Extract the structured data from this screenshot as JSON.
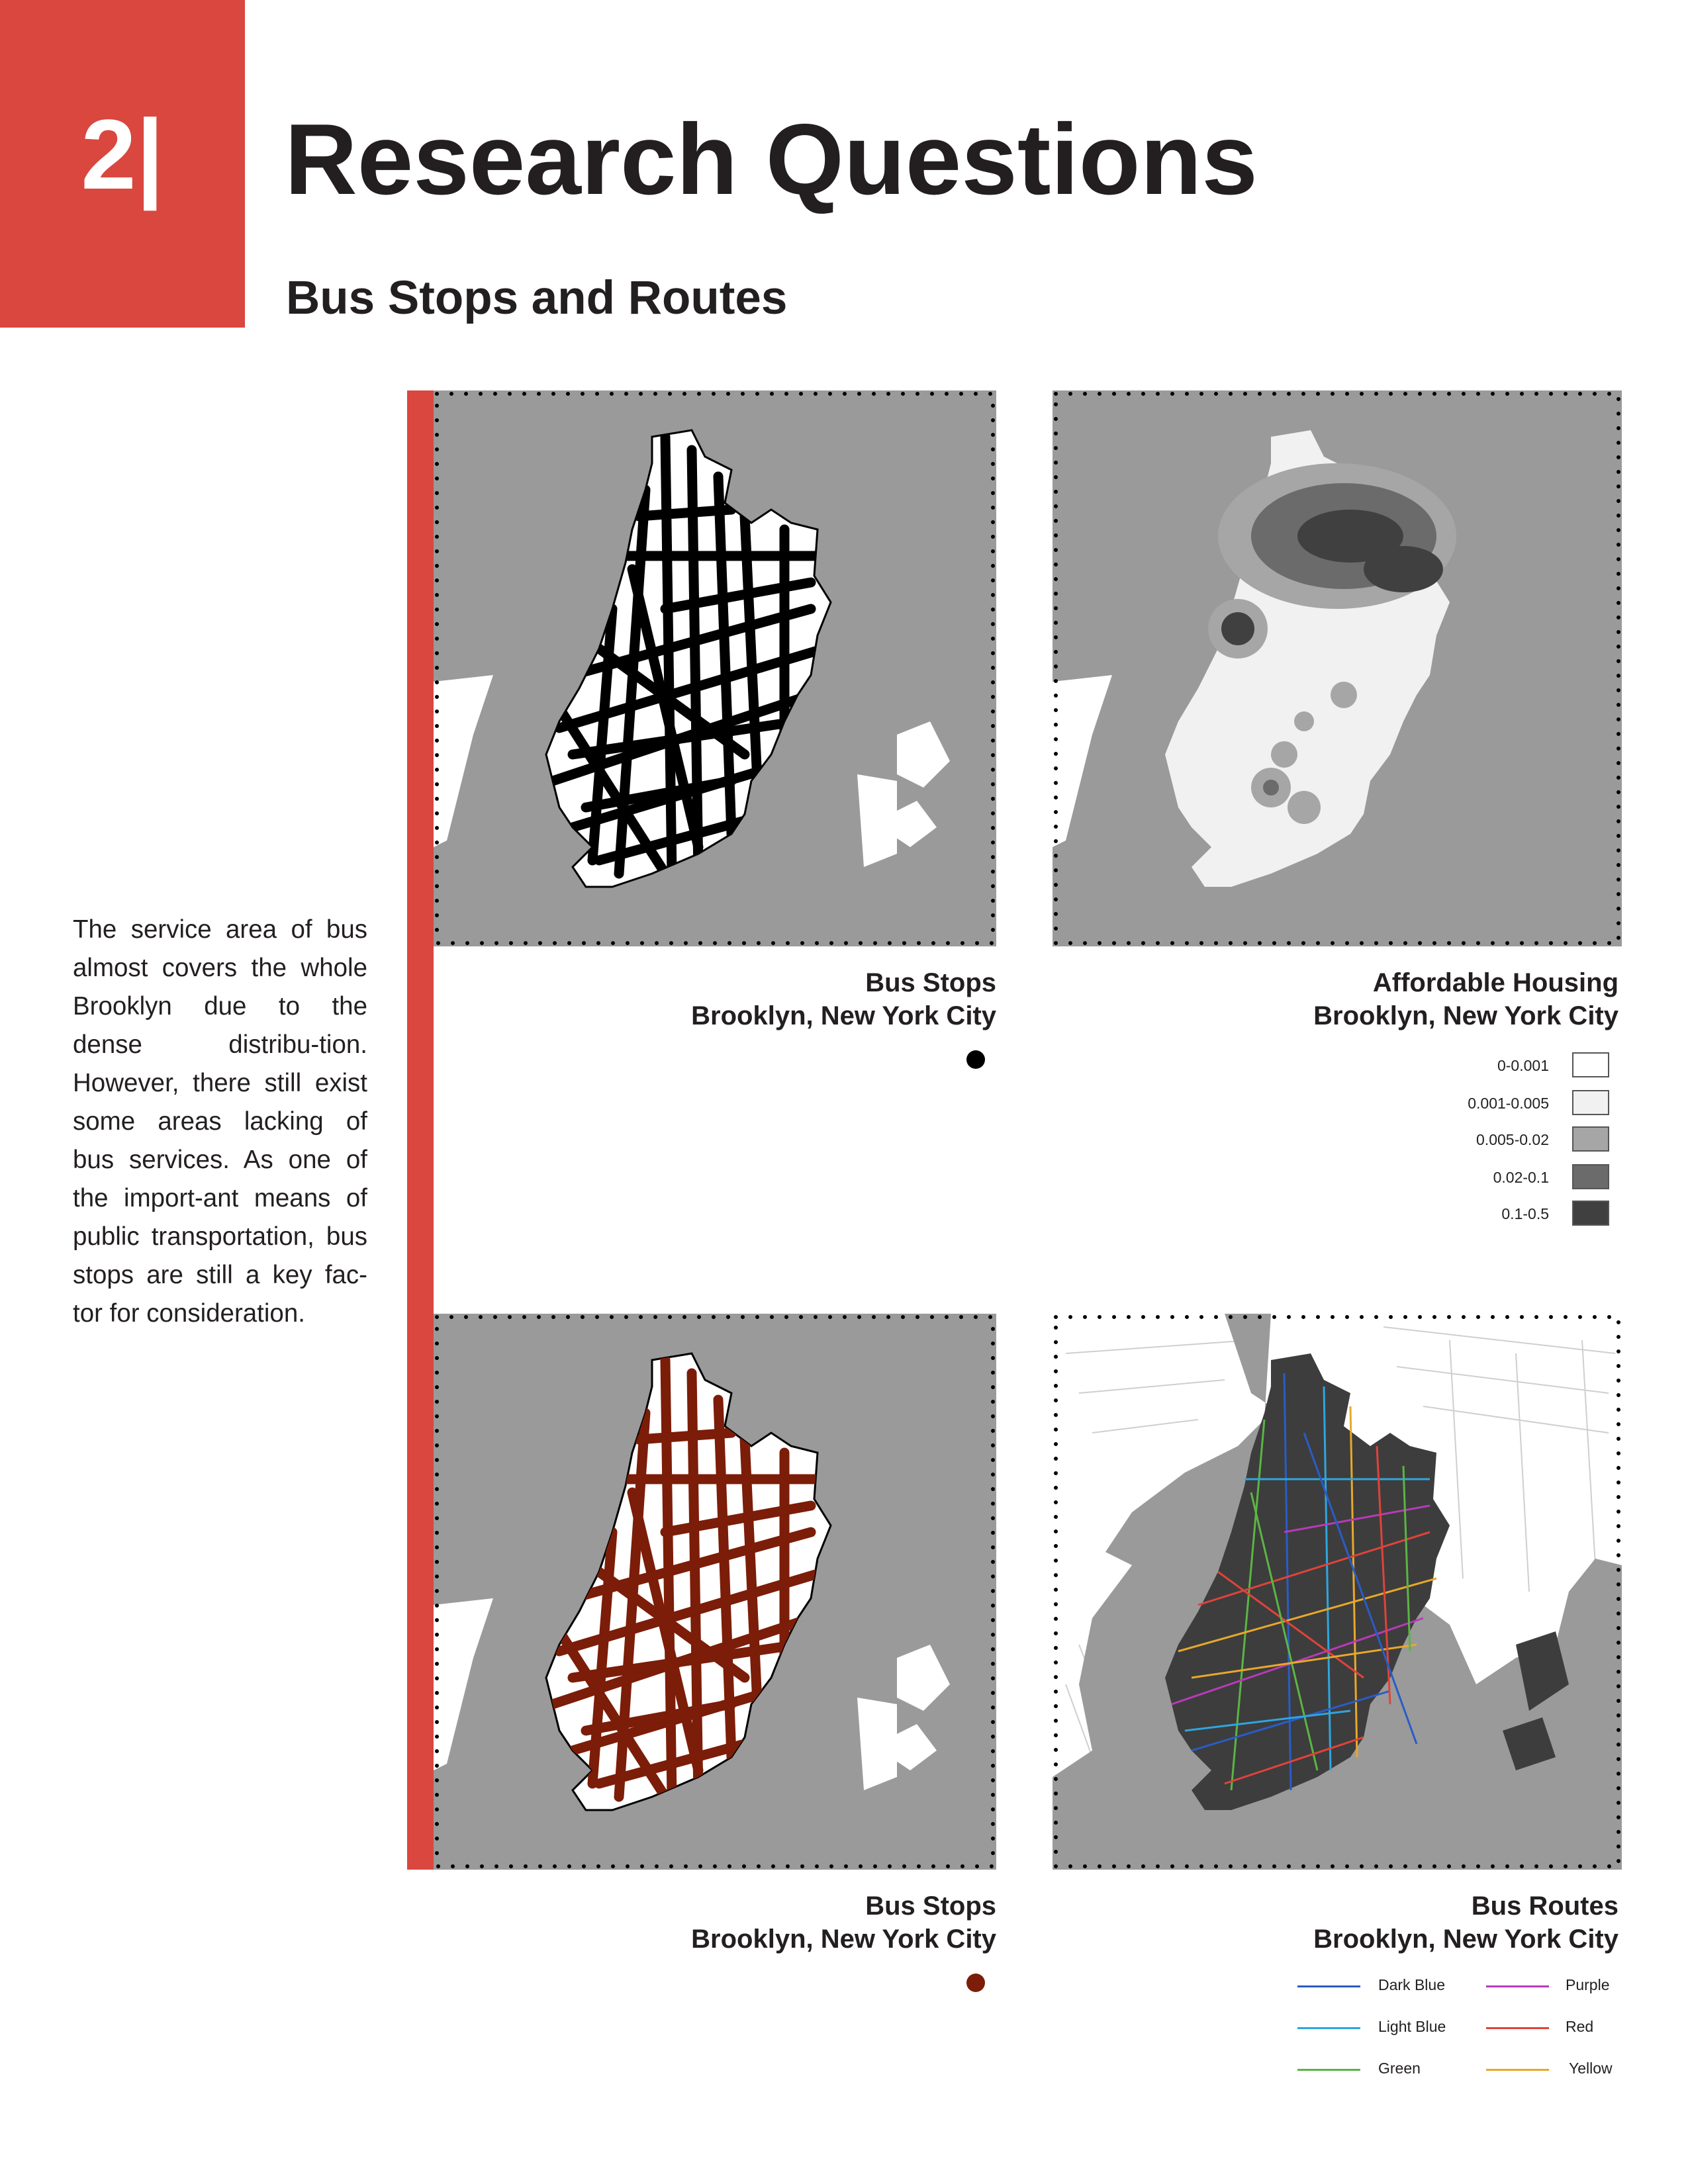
{
  "chapter": {
    "number": "2|"
  },
  "page": {
    "title": "Research Questions",
    "section": "Bus Stops and Routes"
  },
  "body_text": "The service area of bus almost covers the whole Brooklyn due to the dense distribu-tion. However, there still exist some areas lacking of bus services. As one of the import-ant means of public transportation, bus stops are still a key fac-tor for consideration.",
  "colors": {
    "accent": "#d9473f",
    "water": "#9a9a9a",
    "land": "#ffffff",
    "stops_black": "#000000",
    "stops_red": "#7b1d08",
    "routes_land": "#3d3d3d"
  },
  "maps": [
    {
      "id": "map-1",
      "caption_title": "Bus Stops",
      "caption_place": "Brooklyn, New York City",
      "symbol_color": "#000000"
    },
    {
      "id": "map-2",
      "caption_title": "Affordable Housing",
      "caption_place": "Brooklyn, New York City",
      "legend": [
        {
          "label": "0-0.001",
          "color": "#ffffff"
        },
        {
          "label": "0.001-0.005",
          "color": "#f1f1f1"
        },
        {
          "label": "0.005-0.02",
          "color": "#a6a6a6"
        },
        {
          "label": "0.02-0.1",
          "color": "#6b6b6b"
        },
        {
          "label": "0.1-0.5",
          "color": "#404040"
        }
      ]
    },
    {
      "id": "map-3",
      "caption_title": "Bus Stops",
      "caption_place": "Brooklyn, New York City",
      "symbol_color": "#7b1d08"
    },
    {
      "id": "map-4",
      "caption_title": "Bus Routes",
      "caption_place": "Brooklyn, New York City",
      "legend": [
        {
          "label": "Dark Blue",
          "color": "#2a5cc7"
        },
        {
          "label": "Purple",
          "color": "#b83ab8"
        },
        {
          "label": "Light Blue",
          "color": "#2ea6e0"
        },
        {
          "label": "Red",
          "color": "#e0433a"
        },
        {
          "label": "Green",
          "color": "#5bb544"
        },
        {
          "label": "Yellow",
          "color": "#e8a82a"
        }
      ]
    }
  ]
}
